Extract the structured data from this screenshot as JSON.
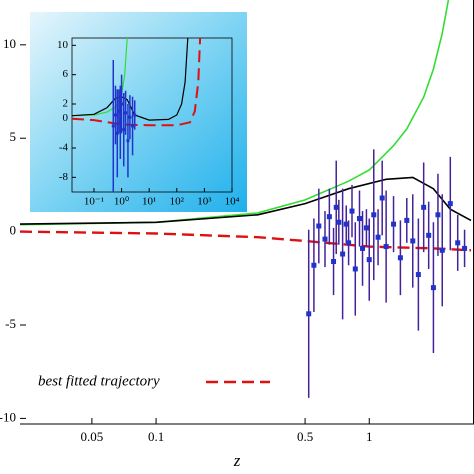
{
  "chart_data": [
    {
      "type": "line",
      "x_label": "z",
      "xscale": "log",
      "xlim": [
        0.023,
        3.1
      ],
      "ylim": [
        -10.3,
        12.4
      ],
      "xticks": [
        0.05,
        0.1,
        0.5,
        1
      ],
      "yticks": [
        -10,
        -5,
        0,
        5,
        10
      ],
      "legend": "lower left",
      "series": [
        {
          "color": "#33dd33",
          "x": [
            0.023,
            0.1,
            0.3,
            0.5,
            0.8,
            1,
            1.3,
            1.5,
            1.8,
            2,
            2.2,
            2.35
          ],
          "values": [
            0.37,
            0.5,
            1.0,
            1.7,
            2.7,
            3.3,
            4.6,
            5.5,
            7.2,
            8.7,
            10.6,
            12.4
          ]
        },
        {
          "color": "#000000",
          "x": [
            0.023,
            0.1,
            0.3,
            0.5,
            0.8,
            1.2,
            1.6,
            2.0,
            2.4,
            3.0
          ],
          "values": [
            0.4,
            0.5,
            0.9,
            1.5,
            2.3,
            2.8,
            2.9,
            2.3,
            1.2,
            0.6
          ]
        },
        {
          "name": "best fitted trajectory",
          "color": "#dd1111",
          "dashed": true,
          "x": [
            0.023,
            0.1,
            0.3,
            0.5,
            1,
            2,
            3
          ],
          "values": [
            0.0,
            -0.1,
            -0.3,
            -0.5,
            -0.8,
            -0.9,
            -1.0
          ]
        },
        {
          "type": "errorbar",
          "color": "#2233cc",
          "errcolor": "#442299",
          "x": [
            0.52,
            0.55,
            0.58,
            0.62,
            0.65,
            0.68,
            0.7,
            0.72,
            0.75,
            0.78,
            0.8,
            0.83,
            0.86,
            0.9,
            0.93,
            0.97,
            1.0,
            1.05,
            1.1,
            1.15,
            1.2,
            1.3,
            1.4,
            1.5,
            1.6,
            1.7,
            1.8,
            1.9,
            2.0,
            2.1,
            2.2,
            2.4,
            2.6,
            2.8
          ],
          "values": [
            -4.4,
            -1.8,
            0.3,
            -0.4,
            0.8,
            -1.6,
            1.3,
            0.5,
            -1.2,
            0.4,
            -0.6,
            1.1,
            -2.0,
            0.7,
            -0.9,
            0.2,
            -1.5,
            0.9,
            -0.3,
            1.8,
            -0.8,
            0.4,
            -1.4,
            0.6,
            -0.5,
            -2.3,
            1.3,
            -0.2,
            -3.0,
            0.9,
            -1.0,
            1.5,
            -0.6,
            -0.9
          ],
          "errors": [
            4.5,
            2.5,
            2,
            1.5,
            1.5,
            1.8,
            2.5,
            1.2,
            3.5,
            1,
            1.2,
            1.4,
            2.5,
            1.5,
            2,
            1,
            2.2,
            3.5,
            1.5,
            2,
            3,
            1.5,
            2,
            1.2,
            2.5,
            3,
            2.4,
            1.8,
            3.5,
            2.2,
            3,
            2.5,
            1.5,
            1.0
          ]
        }
      ]
    },
    {
      "type": "line",
      "xscale": "log",
      "xlim": [
        0.016,
        10000
      ],
      "ylim": [
        -10,
        11
      ],
      "xticks": [
        {
          "value": 0.1,
          "label": "10⁻¹"
        },
        {
          "value": 1,
          "label": "10⁰"
        },
        {
          "value": 10,
          "label": "10¹"
        },
        {
          "value": 100,
          "label": "10²"
        },
        {
          "value": 1000,
          "label": "10³"
        },
        {
          "value": 10000,
          "label": "10⁴"
        }
      ],
      "yticks": [
        -8,
        -4,
        0,
        2,
        6,
        10
      ],
      "series": [
        {
          "color": "#33dd33",
          "x": [
            0.016,
            0.1,
            0.3,
            0.6,
            1,
            1.3,
            1.6
          ],
          "values": [
            0.4,
            0.5,
            0.9,
            1.6,
            3.3,
            6,
            11
          ]
        },
        {
          "color": "#000000",
          "x": [
            0.016,
            0.1,
            0.3,
            0.6,
            1,
            1.6,
            3,
            10,
            50,
            100,
            150,
            200,
            250
          ],
          "values": [
            0.4,
            0.6,
            1.5,
            2.8,
            3.0,
            2.6,
            0.5,
            -0.2,
            -0.1,
            0.5,
            2,
            5,
            11
          ]
        },
        {
          "color": "#dd1111",
          "dashed": true,
          "x": [
            0.016,
            0.1,
            1,
            10,
            100,
            300,
            450,
            600,
            700
          ],
          "values": [
            0,
            -0.2,
            -0.8,
            -0.9,
            -0.9,
            -0.5,
            1,
            5,
            11
          ]
        },
        {
          "type": "errorbar",
          "color": "#2233cc",
          "errcolor": "#2233cc",
          "x": [
            0.5,
            0.6,
            0.7,
            0.8,
            0.9,
            1.0,
            1.2,
            1.4,
            1.7,
            2.0,
            2.5,
            3.0
          ],
          "values": [
            -1,
            0.5,
            -2,
            1,
            -0.5,
            2,
            -1.5,
            0.8,
            -3,
            0.2,
            -1,
            0.5
          ],
          "errors": [
            9,
            4,
            6,
            3,
            5,
            4,
            5,
            3,
            5,
            3,
            4,
            2
          ]
        }
      ]
    }
  ]
}
